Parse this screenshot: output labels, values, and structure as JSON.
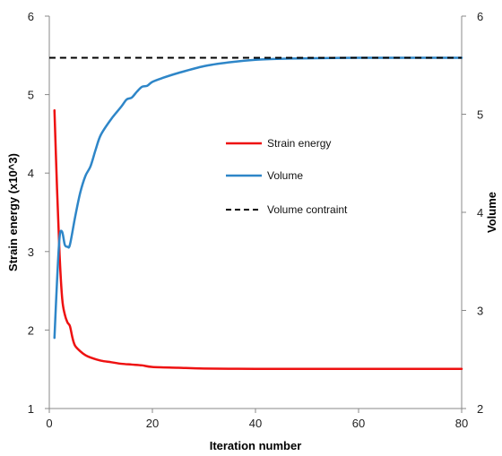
{
  "chart_data": {
    "type": "line",
    "xlabel": "Iteration number",
    "ylabel_left": "Strain energy (x10^3)",
    "ylabel_right": "Volume",
    "xlim": [
      0,
      80
    ],
    "ylim_left": [
      1,
      6
    ],
    "ylim_right": [
      2,
      6
    ],
    "x_ticks": [
      "0",
      "20",
      "40",
      "60",
      "80"
    ],
    "y_left_ticks": [
      "1",
      "2",
      "3",
      "4",
      "5",
      "6"
    ],
    "y_right_ticks": [
      "2",
      "3",
      "4",
      "5",
      "6"
    ],
    "grid": false,
    "legend_position": "center-right",
    "series": [
      {
        "name": "Strain energy",
        "axis": "left",
        "color": "#ee1111",
        "style": "solid",
        "x": [
          1,
          1.5,
          2,
          2.5,
          3,
          3.5,
          4,
          4.5,
          5,
          6,
          7,
          8,
          10,
          12,
          14,
          16,
          18,
          20,
          25,
          30,
          40,
          50,
          60,
          70,
          80
        ],
        "y": [
          4.8,
          3.8,
          2.95,
          2.4,
          2.2,
          2.1,
          2.05,
          1.9,
          1.8,
          1.73,
          1.68,
          1.65,
          1.61,
          1.59,
          1.57,
          1.56,
          1.55,
          1.53,
          1.52,
          1.51,
          1.505,
          1.505,
          1.505,
          1.505,
          1.505
        ]
      },
      {
        "name": "Volume",
        "axis": "right",
        "color": "#2e86c8",
        "style": "solid",
        "x": [
          1,
          1.5,
          2,
          2.5,
          3,
          3.5,
          4,
          5,
          6,
          7,
          8,
          9,
          10,
          12,
          14,
          15,
          16,
          17,
          18,
          19,
          20,
          22,
          25,
          30,
          35,
          40,
          45,
          50,
          60,
          70,
          80
        ],
        "y": [
          2.72,
          3.3,
          3.75,
          3.8,
          3.67,
          3.65,
          3.67,
          3.95,
          4.2,
          4.37,
          4.47,
          4.64,
          4.79,
          4.95,
          5.08,
          5.15,
          5.17,
          5.23,
          5.28,
          5.29,
          5.33,
          5.37,
          5.42,
          5.49,
          5.53,
          5.555,
          5.565,
          5.57,
          5.575,
          5.575,
          5.575
        ]
      },
      {
        "name": "Volume contraint",
        "axis": "right",
        "color": "#000000",
        "style": "dashed",
        "x": [
          0,
          80
        ],
        "y": [
          5.575,
          5.575
        ]
      }
    ]
  }
}
